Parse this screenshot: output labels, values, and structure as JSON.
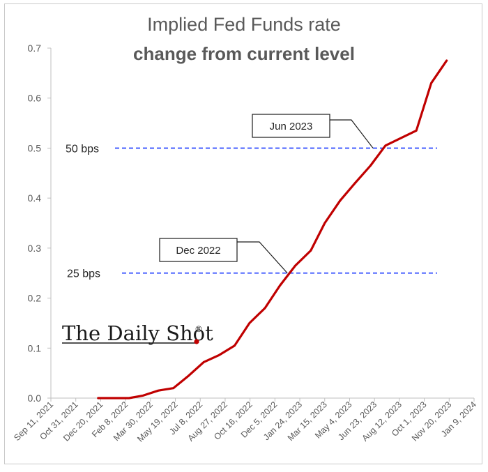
{
  "title_line1": "Implied Fed Funds rate",
  "title_line2": "change from current level",
  "watermark": "The Daily Shot",
  "watermark_mark": "®",
  "colors": {
    "series": "#c00000",
    "reference": "#1f3dff",
    "axis": "#595959"
  },
  "chart_data": {
    "type": "line",
    "title": "Implied Fed Funds rate change from current level",
    "xlabel": "",
    "ylabel": "",
    "ylim": [
      0,
      0.7
    ],
    "yticks": [
      "0.0",
      "0.1",
      "0.2",
      "0.3",
      "0.4",
      "0.5",
      "0.6",
      "0.7"
    ],
    "xlim": [
      "2021-09-11",
      "2024-01-09"
    ],
    "xticks": [
      "Sep 11, 2021",
      "Oct 31, 2021",
      "Dec 20, 2021",
      "Feb 8, 2022",
      "Mar 30, 2022",
      "May 19, 2022",
      "Jul 8, 2022",
      "Aug 27, 2022",
      "Oct 16, 2022",
      "Dec 5, 2022",
      "Jan 24, 2023",
      "Mar 15, 2023",
      "May 4, 2023",
      "Jun 23, 2023",
      "Aug 12, 2023",
      "Oct 1, 2023",
      "Nov 20, 2023",
      "Jan 9, 2024"
    ],
    "series": [
      {
        "x": [
          "2021-12-15",
          "2022-01-15",
          "2022-02-15",
          "2022-03-15",
          "2022-04-15",
          "2022-05-15",
          "2022-06-15",
          "2022-07-15",
          "2022-08-15",
          "2022-09-15",
          "2022-10-15",
          "2022-11-15",
          "2022-12-15",
          "2023-01-15",
          "2023-02-15",
          "2023-03-15",
          "2023-04-15",
          "2023-05-15",
          "2023-06-15",
          "2023-07-15",
          "2023-08-15",
          "2023-09-15",
          "2023-10-15",
          "2023-11-15"
        ],
        "y": [
          0.0,
          0.0,
          0.0,
          0.005,
          0.015,
          0.02,
          0.045,
          0.072,
          0.086,
          0.105,
          0.15,
          0.18,
          0.225,
          0.265,
          0.295,
          0.35,
          0.395,
          0.43,
          0.465,
          0.505,
          0.52,
          0.535,
          0.63,
          0.675
        ]
      }
    ],
    "reference_lines": [
      {
        "label": "50 bps",
        "y": 0.5
      },
      {
        "label": "25 bps",
        "y": 0.25
      }
    ],
    "annotations": [
      {
        "label": "Jun 2023",
        "x": "2023-06-20",
        "y": 0.5
      },
      {
        "label": "Dec 2022",
        "x": "2022-12-30",
        "y": 0.25
      }
    ],
    "grid": false,
    "legend": "none"
  }
}
